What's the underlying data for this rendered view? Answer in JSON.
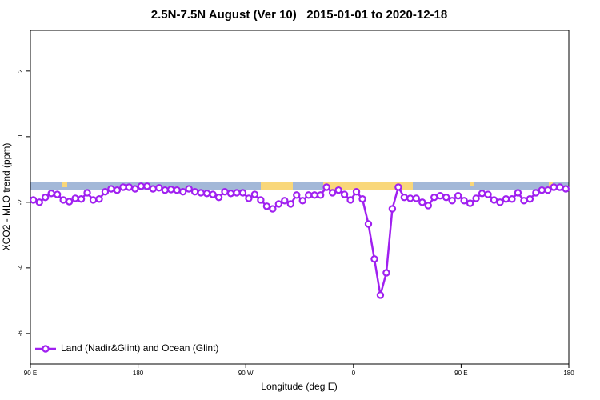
{
  "chart_data": {
    "type": "line",
    "title": "2.5N-7.5N August (Ver 10)   2015-01-01 to 2020-12-18",
    "x_label": "Longitude (deg E)",
    "y_label": "XCO2 - MLO trend (ppm)",
    "x": [
      92.5,
      97.5,
      102.5,
      107.5,
      112.5,
      117.5,
      122.5,
      127.5,
      132.5,
      137.5,
      142.5,
      147.5,
      152.5,
      157.5,
      162.5,
      167.5,
      172.5,
      177.5,
      182.5,
      187.5,
      192.5,
      197.5,
      202.5,
      207.5,
      212.5,
      217.5,
      222.5,
      227.5,
      232.5,
      237.5,
      242.5,
      247.5,
      252.5,
      257.5,
      262.5,
      267.5,
      272.5,
      277.5,
      282.5,
      287.5,
      292.5,
      297.5,
      302.5,
      307.5,
      312.5,
      317.5,
      322.5,
      327.5,
      332.5,
      337.5,
      342.5,
      347.5,
      352.5,
      357.5,
      362.5,
      367.5,
      372.5,
      377.5,
      382.5,
      387.5,
      392.5,
      397.5,
      402.5,
      407.5,
      412.5,
      417.5,
      422.5,
      427.5,
      432.5,
      437.5,
      442.5,
      447.5,
      452.5,
      457.5,
      462.5,
      467.5,
      472.5,
      477.5,
      482.5,
      487.5,
      492.5,
      497.5,
      502.5,
      507.5,
      512.5,
      517.5,
      522.5,
      527.5,
      532.5,
      537.5
    ],
    "series": [
      {
        "name": "Land (Nadir&Glint) and Ocean (Glint)",
        "color": "#a020f0",
        "values": [
          -1.93,
          -2.0,
          -1.85,
          -1.73,
          -1.76,
          -1.93,
          -1.98,
          -1.88,
          -1.9,
          -1.71,
          -1.93,
          -1.9,
          -1.68,
          -1.59,
          -1.63,
          -1.54,
          -1.54,
          -1.59,
          -1.51,
          -1.51,
          -1.59,
          -1.56,
          -1.63,
          -1.61,
          -1.63,
          -1.68,
          -1.59,
          -1.68,
          -1.71,
          -1.73,
          -1.76,
          -1.85,
          -1.68,
          -1.73,
          -1.71,
          -1.71,
          -1.88,
          -1.76,
          -1.93,
          -2.12,
          -2.2,
          -2.05,
          -1.95,
          -2.05,
          -1.78,
          -1.95,
          -1.78,
          -1.78,
          -1.78,
          -1.54,
          -1.71,
          -1.63,
          -1.76,
          -1.93,
          -1.68,
          -1.9,
          -2.66,
          -3.73,
          -4.83,
          -4.15,
          -2.2,
          -1.54,
          -1.85,
          -1.88,
          -1.88,
          -2.0,
          -2.1,
          -1.85,
          -1.8,
          -1.85,
          -1.95,
          -1.8,
          -1.95,
          -2.03,
          -1.88,
          -1.73,
          -1.76,
          -1.93,
          -2.0,
          -1.9,
          -1.9,
          -1.71,
          -1.95,
          -1.9,
          -1.71,
          -1.63,
          -1.63,
          -1.54,
          -1.54,
          -1.59
        ]
      }
    ],
    "xlim": [
      90,
      540
    ],
    "xticks": [
      {
        "value": 90,
        "label": "90 E"
      },
      180,
      {
        "value": 270,
        "label": "90 W"
      },
      {
        "value": 360,
        "label": "0"
      },
      {
        "value": 450,
        "label": "90 E"
      },
      {
        "value": 540,
        "label": "180"
      }
    ],
    "ylim": [
      -6.93,
      3.24
    ],
    "yticks": [
      -6,
      -4,
      -2,
      0,
      2
    ],
    "legend": "bottom-left"
  }
}
